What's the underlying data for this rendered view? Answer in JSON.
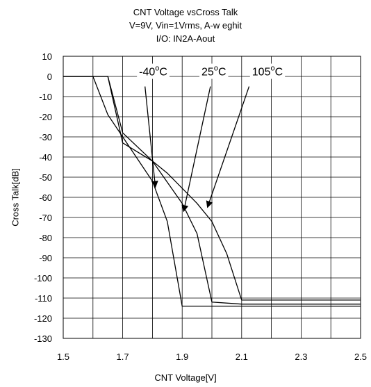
{
  "chart_data": {
    "type": "line",
    "title_lines": [
      "CNT Voltage vsCross Talk",
      "V=9V, Vin=1Vrms, A-w eghit",
      "I/O: IN2A-Aout"
    ],
    "xlabel": "CNT Voltage[V]",
    "ylabel": "Cross Talk[dB]",
    "xlim": [
      1.5,
      2.5
    ],
    "ylim": [
      -130,
      10
    ],
    "x_ticks": [
      "1.5",
      "1.7",
      "1.9",
      "2.1",
      "2.3",
      "2.5"
    ],
    "y_ticks": [
      "10",
      "0",
      "-10",
      "-20",
      "-30",
      "-40",
      "-50",
      "-60",
      "-70",
      "-80",
      "-90",
      "-100",
      "-110",
      "-120",
      "-130"
    ],
    "grid": true,
    "series": [
      {
        "name": "-40°C",
        "x": [
          1.5,
          1.6,
          1.65,
          1.7,
          1.8,
          1.85,
          1.9,
          1.95,
          2.0,
          2.5
        ],
        "y": [
          0,
          0,
          -19,
          -30,
          -52,
          -72,
          -114,
          -114,
          -114,
          -114
        ]
      },
      {
        "name": "25°C",
        "x": [
          1.5,
          1.6,
          1.65,
          1.7,
          1.8,
          1.9,
          1.95,
          2.0,
          2.1,
          2.5
        ],
        "y": [
          0,
          0,
          0,
          -28,
          -42,
          -63,
          -78,
          -112,
          -113,
          -113
        ]
      },
      {
        "name": "105°C",
        "x": [
          1.5,
          1.6,
          1.65,
          1.7,
          1.8,
          1.85,
          1.95,
          2.0,
          2.05,
          2.1,
          2.5
        ],
        "y": [
          0,
          0,
          0,
          -33,
          -42,
          -48,
          -63,
          -72,
          -88,
          -111,
          -111
        ]
      }
    ],
    "annotations": [
      {
        "label_main": "-40",
        "label_sup": "o",
        "label_unit": "C",
        "text_x": 1.755,
        "text_y": 0.5,
        "arrow_from": [
          1.775,
          -5
        ],
        "arrow_to": [
          1.81,
          -55
        ]
      },
      {
        "label_main": "25",
        "label_sup": "o",
        "label_unit": "C",
        "text_x": 1.965,
        "text_y": 0.5,
        "arrow_from": [
          1.995,
          -5
        ],
        "arrow_to": [
          1.905,
          -67
        ]
      },
      {
        "label_main": "105",
        "label_sup": "o",
        "label_unit": "C",
        "text_x": 2.135,
        "text_y": 0.5,
        "arrow_from": [
          2.125,
          -5
        ],
        "arrow_to": [
          1.985,
          -65
        ]
      }
    ]
  }
}
